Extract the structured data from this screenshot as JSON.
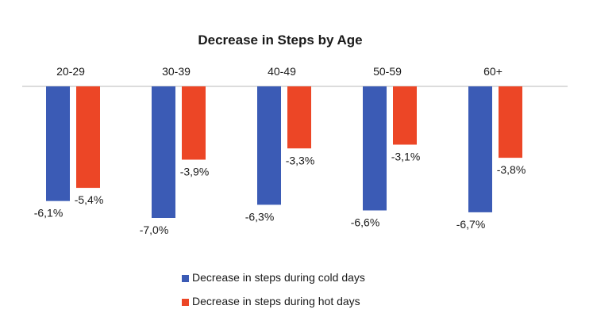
{
  "chart_data": {
    "type": "bar",
    "title": "Decrease in Steps by Age",
    "categories": [
      "20-29",
      "30-39",
      "40-49",
      "50-59",
      "60+"
    ],
    "series": [
      {
        "name": "Decrease in steps during cold days",
        "values": [
          -6.1,
          -7.0,
          -6.3,
          -6.6,
          -6.7
        ],
        "labels": [
          "-6,1%",
          "-7,0%",
          "-6,3%",
          "-6,6%",
          "-6,7%"
        ],
        "color": "#3b5bb5"
      },
      {
        "name": "Decrease in steps during hot days",
        "values": [
          -5.4,
          -3.9,
          -3.3,
          -3.1,
          -3.8
        ],
        "labels": [
          "-5,4%",
          "-3,9%",
          "-3,3%",
          "-3,1%",
          "-3,8%"
        ],
        "color": "#ec4626"
      }
    ],
    "ylim": [
      -7.0,
      0
    ],
    "grid": false,
    "legend_position": "bottom"
  }
}
